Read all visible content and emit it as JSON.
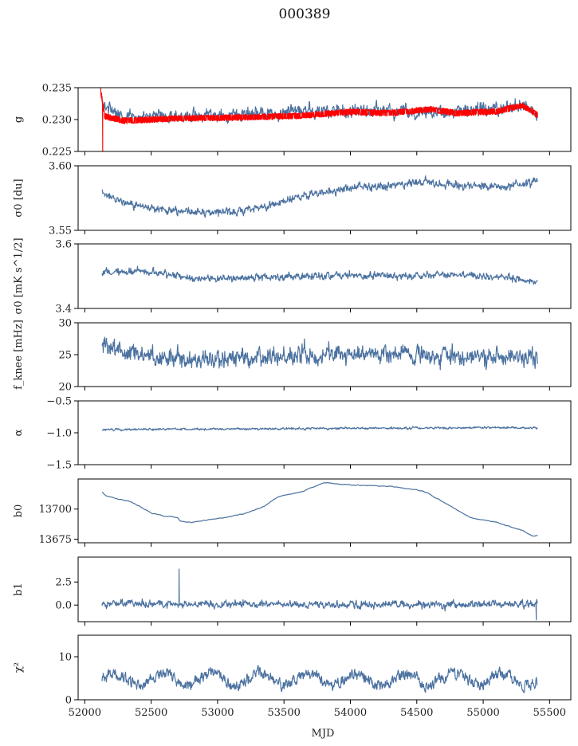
{
  "figure_title": "000389",
  "x_axis": {
    "label": "MJD",
    "range": [
      51950,
      55660
    ],
    "ticks": [
      52000,
      52500,
      53000,
      53500,
      54000,
      54500,
      55000,
      55500
    ],
    "tick_labels": [
      "52000",
      "52500",
      "53000",
      "53500",
      "54000",
      "54500",
      "55000",
      "55500"
    ]
  },
  "colors": {
    "series": "#4c72a0",
    "model": "#ff0000"
  },
  "chart_data": [
    {
      "type": "line",
      "key": "g",
      "ylabel": "g",
      "ylim": [
        0.225,
        0.235
      ],
      "yticks": [
        0.225,
        0.23,
        0.235
      ],
      "ytick_labels": [
        "0.225",
        "0.230",
        "0.235"
      ],
      "series": [
        {
          "style": "noisy",
          "color": "#4c72a0",
          "x_start": 52130,
          "x_end": 55410,
          "noise": 0.0011,
          "seed": 11,
          "knots": [
            [
              52130,
              0.2325
            ],
            [
              52300,
              0.2305
            ],
            [
              52600,
              0.2305
            ],
            [
              53000,
              0.2305
            ],
            [
              53500,
              0.2312
            ],
            [
              54000,
              0.2315
            ],
            [
              54500,
              0.231
            ],
            [
              55000,
              0.2317
            ],
            [
              55300,
              0.2323
            ],
            [
              55410,
              0.231
            ]
          ]
        },
        {
          "style": "band",
          "color": "#ff0000",
          "x_start": 52120,
          "x_end": 55410,
          "noise": 0.00045,
          "seed": 3,
          "knots": [
            [
              52120,
              0.2345
            ],
            [
              52150,
              0.2305
            ],
            [
              52300,
              0.2298
            ],
            [
              52700,
              0.2302
            ],
            [
              53100,
              0.2303
            ],
            [
              53600,
              0.2306
            ],
            [
              54000,
              0.2312
            ],
            [
              54300,
              0.231
            ],
            [
              54600,
              0.2316
            ],
            [
              54800,
              0.231
            ],
            [
              55100,
              0.2313
            ],
            [
              55300,
              0.2322
            ],
            [
              55410,
              0.2307
            ]
          ],
          "spikes": [
            [
              52120,
              0.2355
            ],
            [
              52135,
              0.225
            ]
          ]
        }
      ]
    },
    {
      "type": "line",
      "key": "sigma0_du",
      "ylabel": "σ0 [du]",
      "ylim": [
        3.55,
        3.6
      ],
      "yticks": [
        3.55,
        3.6
      ],
      "ytick_labels": [
        "3.55",
        "3.60"
      ],
      "series": [
        {
          "style": "noisy",
          "color": "#4c72a0",
          "x_start": 52130,
          "x_end": 55410,
          "noise": 0.0035,
          "seed": 21,
          "knots": [
            [
              52130,
              3.579
            ],
            [
              52300,
              3.571
            ],
            [
              52600,
              3.566
            ],
            [
              52900,
              3.564
            ],
            [
              53100,
              3.564
            ],
            [
              53400,
              3.57
            ],
            [
              53700,
              3.578
            ],
            [
              54000,
              3.583
            ],
            [
              54300,
              3.585
            ],
            [
              54600,
              3.587
            ],
            [
              54900,
              3.584
            ],
            [
              55200,
              3.584
            ],
            [
              55410,
              3.588
            ]
          ]
        }
      ]
    },
    {
      "type": "line",
      "key": "sigma0_mk",
      "ylabel": "σ0 [mK s^1/2]",
      "ylim": [
        3.4,
        3.6
      ],
      "yticks": [
        3.4,
        3.6
      ],
      "ytick_labels": [
        "3.4",
        "3.6"
      ],
      "series": [
        {
          "style": "noisy",
          "color": "#4c72a0",
          "x_start": 52130,
          "x_end": 55410,
          "noise": 0.012,
          "seed": 31,
          "knots": [
            [
              52130,
              3.51
            ],
            [
              52400,
              3.515
            ],
            [
              52800,
              3.495
            ],
            [
              53200,
              3.495
            ],
            [
              53600,
              3.5
            ],
            [
              54000,
              3.505
            ],
            [
              54400,
              3.5
            ],
            [
              54800,
              3.505
            ],
            [
              55200,
              3.495
            ],
            [
              55410,
              3.48
            ]
          ]
        }
      ]
    },
    {
      "type": "line",
      "key": "fknee",
      "ylabel": "f_knee [mHz]",
      "ylim": [
        20,
        30
      ],
      "yticks": [
        20,
        25,
        30
      ],
      "ytick_labels": [
        "20",
        "25",
        "30"
      ],
      "series": [
        {
          "style": "noisy",
          "color": "#4c72a0",
          "x_start": 52130,
          "x_end": 55410,
          "noise": 1.6,
          "seed": 41,
          "knots": [
            [
              52130,
              26.5
            ],
            [
              52400,
              25
            ],
            [
              52800,
              24.5
            ],
            [
              53200,
              24.5
            ],
            [
              53600,
              25
            ],
            [
              54000,
              25
            ],
            [
              54400,
              25
            ],
            [
              54800,
              24.8
            ],
            [
              55200,
              24.5
            ],
            [
              55410,
              24.5
            ]
          ]
        }
      ]
    },
    {
      "type": "line",
      "key": "alpha",
      "ylabel": "α",
      "ylim": [
        -1.5,
        -0.5
      ],
      "yticks": [
        -1.5,
        -1.0,
        -0.5
      ],
      "ytick_labels": [
        "−1.5",
        "−1.0",
        "−0.5"
      ],
      "series": [
        {
          "style": "noisy",
          "color": "#4c72a0",
          "x_start": 52130,
          "x_end": 55410,
          "noise": 0.018,
          "seed": 51,
          "knots": [
            [
              52130,
              -0.95
            ],
            [
              53000,
              -0.94
            ],
            [
              54000,
              -0.93
            ],
            [
              55000,
              -0.92
            ],
            [
              55410,
              -0.92
            ]
          ]
        }
      ]
    },
    {
      "type": "line",
      "key": "b0",
      "ylabel": "b0",
      "ylim": [
        13672,
        13725
      ],
      "yticks": [
        13675,
        13700
      ],
      "ytick_labels": [
        "13675",
        "13700"
      ],
      "series": [
        {
          "style": "smooth",
          "color": "#4c72a0",
          "x_start": 52130,
          "x_end": 55410,
          "noise": 0.4,
          "seed": 61,
          "knots": [
            [
              52130,
              13714
            ],
            [
              52160,
              13711
            ],
            [
              52350,
              13706
            ],
            [
              52500,
              13697
            ],
            [
              52600,
              13694
            ],
            [
              52700,
              13693
            ],
            [
              52720,
              13690
            ],
            [
              52800,
              13689
            ],
            [
              53000,
              13692
            ],
            [
              53200,
              13696
            ],
            [
              53350,
              13702
            ],
            [
              53450,
              13710
            ],
            [
              53650,
              13715
            ],
            [
              53800,
              13722
            ],
            [
              54000,
              13720
            ],
            [
              54300,
              13719
            ],
            [
              54550,
              13715
            ],
            [
              54700,
              13706
            ],
            [
              54900,
              13693
            ],
            [
              55100,
              13689
            ],
            [
              55300,
              13682
            ],
            [
              55380,
              13677
            ],
            [
              55410,
              13678
            ]
          ]
        }
      ]
    },
    {
      "type": "line",
      "key": "b1",
      "ylabel": "b1",
      "ylim": [
        -1.8,
        5.2
      ],
      "yticks": [
        0.0,
        2.5
      ],
      "ytick_labels": [
        "0.0",
        "2.5"
      ],
      "series": [
        {
          "style": "noisy",
          "color": "#4c72a0",
          "x_start": 52130,
          "x_end": 55410,
          "noise": 0.42,
          "seed": 71,
          "knots": [
            [
              52130,
              0.2
            ],
            [
              53000,
              0.05
            ],
            [
              54000,
              0.05
            ],
            [
              55000,
              0.1
            ],
            [
              55410,
              0.1
            ]
          ],
          "spikes": [
            [
              52710,
              3.9
            ],
            [
              55400,
              -1.6
            ]
          ]
        }
      ]
    },
    {
      "type": "line",
      "key": "chi2",
      "ylabel": "χ²",
      "ylim": [
        0,
        15
      ],
      "yticks": [
        0,
        10
      ],
      "ytick_labels": [
        "0",
        "10"
      ],
      "series": [
        {
          "style": "periodic",
          "color": "#4c72a0",
          "x_start": 52130,
          "x_end": 55410,
          "noise": 0.9,
          "seed": 81,
          "base": 4.8,
          "amplitude": 1.4,
          "period": 365,
          "knots": [
            [
              52130,
              4.8
            ],
            [
              55410,
              4.8
            ]
          ]
        }
      ]
    }
  ]
}
